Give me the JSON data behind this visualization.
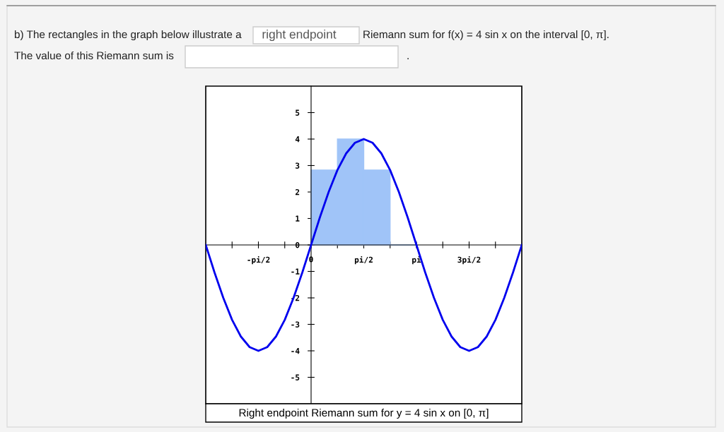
{
  "chart_data": {
    "type": "line",
    "title": "Right endpoint Riemann sum for y = 4 sin x on [0, π]",
    "annotations": [
      "b) The rectangles in the graph below illustrate a",
      "right endpoint",
      "Riemann sum for f(x) = 4 sin x on the interval [0, π].",
      "The value of this Riemann sum is",
      "."
    ],
    "series": [
      {
        "type": "bar",
        "color": "#a0c4f8",
        "x": [
          0.3927,
          1.1781,
          1.9635,
          2.7489
        ],
        "values": [
          2.83,
          4,
          2.83,
          0
        ]
      },
      {
        "color": "#0000ee",
        "x": [
          -3.1416,
          -2.8798,
          -2.618,
          -2.3562,
          -2.0944,
          -1.8326,
          -1.5708,
          -1.309,
          -1.0472,
          -0.7854,
          -0.5236,
          -0.2618,
          0,
          0.2618,
          0.5236,
          0.7854,
          1.0472,
          1.309,
          1.5708,
          1.8326,
          2.0944,
          2.3562,
          2.618,
          2.8798,
          3.1416,
          3.4034,
          3.6652,
          3.927,
          4.1888,
          4.4506,
          4.7124,
          4.9742,
          5.236,
          5.4978,
          5.7596,
          6.0214,
          6.2832
        ],
        "values": [
          0,
          -1.04,
          -2,
          -2.83,
          -3.46,
          -3.86,
          -4,
          -3.86,
          -3.46,
          -2.83,
          -2,
          -1.04,
          0,
          1.04,
          2,
          2.83,
          3.46,
          3.86,
          4,
          3.86,
          3.46,
          2.83,
          2,
          1.04,
          0,
          -1.04,
          -2,
          -2.83,
          -3.46,
          -3.86,
          -4,
          -3.86,
          -3.46,
          -2.83,
          -2,
          -1.04,
          0
        ]
      }
    ],
    "xlim": [
      -3.1416,
      6.2832
    ],
    "ylim": [
      -6,
      6
    ],
    "xticks": [
      {
        "value": -2.3562,
        "label": null
      },
      {
        "value": -1.5708,
        "label": "-pi/2"
      },
      {
        "value": -0.7854,
        "label": null
      },
      0,
      {
        "value": 0.7854,
        "label": null
      },
      {
        "value": 1.5708,
        "label": "pi/2"
      },
      {
        "value": 2.3562,
        "label": null
      },
      {
        "value": 3.1416,
        "label": "pi"
      },
      {
        "value": 3.927,
        "label": null
      },
      {
        "value": 4.7124,
        "label": "3pi/2"
      },
      {
        "value": 5.4978,
        "label": null
      }
    ],
    "yticks": [
      -5,
      -4,
      -3,
      -2,
      -1,
      0,
      1,
      2,
      3,
      4,
      5
    ],
    "grid": false,
    "legend": false,
    "marker": "none",
    "line_style": "solid"
  }
}
